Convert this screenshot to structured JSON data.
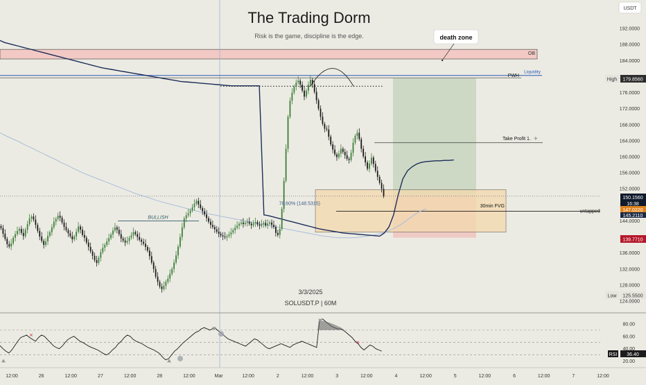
{
  "header": {
    "title": "The Trading Dorm",
    "subtitle": "Risk is the game, discipline is the edge.",
    "date_watermark": "3/3/2025",
    "symbol_watermark": "SOLUSDT.P | 60M"
  },
  "colors": {
    "background": "#ecebe3",
    "candle_up": "#3d7f3a",
    "candle_down": "#1c1c1c",
    "ema_line": "#1b2d5a",
    "vwap_line": "#a8bddb",
    "ob_zone": "#f2c9c4",
    "fvg_zone": "#f4d9ae",
    "tp_zone": "#c9d6c0",
    "sl_zone": "#f0c7c0",
    "liquidity_line": "#2a5ab8",
    "low_badge": "#b5172a",
    "price_badge": "#0f1a2b",
    "vwap_badge": "#e0841e"
  },
  "price_scale": {
    "currency": "USDT",
    "ticks": [
      "192.0000",
      "188.0000",
      "184.0000",
      "180.0000",
      "176.0000",
      "172.0000",
      "168.0000",
      "164.0000",
      "160.0000",
      "156.0000",
      "152.0000",
      "148.0000",
      "144.0000",
      "140.0000",
      "136.0000",
      "132.0000",
      "128.0000",
      "124.0000"
    ],
    "high_label": "High",
    "high_value": "179.8560",
    "current_price": "150.1560",
    "countdown": "16:38",
    "vwap_value": "147.0220",
    "hidden_value": "145.2110",
    "stop_value": "139.7710",
    "low_label": "Low",
    "low_value": "125.5500"
  },
  "annotations": {
    "death_zone": "death zone",
    "ob": "OB",
    "liquidity": "Liquidity",
    "pwh": "PWH",
    "take_profit": "Take Profit 1.",
    "bullish": "BULLISH",
    "fib": "78.60% (148.5315)",
    "fvg": "30min FVG",
    "vwap_label": "untapped VWAP"
  },
  "rsi": {
    "label": "RSI",
    "value": "36.40",
    "ticks": [
      "80.00",
      "60.00",
      "40.00",
      "20.00"
    ]
  },
  "time_axis": [
    "12:00",
    "26",
    "12:00",
    "27",
    "12:00",
    "28",
    "12:00",
    "Mar",
    "12:00",
    "2",
    "12:00",
    "3",
    "12:00",
    "4",
    "12:00",
    "5",
    "12:00",
    "6",
    "12:00",
    "7",
    "12:00"
  ],
  "chart_data": {
    "type": "candlestick",
    "symbol": "SOLUSDT.P",
    "timeframe": "60M",
    "ylim": [
      124,
      196
    ],
    "x_range_hours": [
      0,
      162
    ],
    "first_candle_hour": 0,
    "candle_interval_hours": 1,
    "candles_close": [
      142.2,
      140.8,
      139.5,
      138.2,
      137.6,
      138.4,
      139.8,
      140.7,
      141.5,
      142.0,
      141.0,
      140.2,
      141.8,
      143.2,
      144.6,
      145.1,
      144.3,
      143.0,
      141.5,
      140.1,
      139.0,
      138.0,
      138.9,
      140.3,
      141.2,
      142.4,
      143.8,
      144.5,
      145.3,
      144.8,
      143.6,
      142.5,
      141.7,
      140.9,
      140.2,
      139.4,
      140.1,
      141.3,
      142.6,
      141.8,
      140.5,
      139.8,
      138.6,
      137.5,
      136.4,
      135.3,
      134.2,
      133.5,
      134.8,
      136.2,
      137.3,
      138.0,
      138.9,
      139.7,
      140.6,
      141.6,
      142.4,
      141.8,
      140.7,
      139.6,
      139.1,
      138.6,
      139.0,
      139.8,
      140.4,
      141.2,
      140.7,
      140.0,
      139.3,
      138.8,
      138.3,
      137.5,
      136.6,
      135.2,
      133.6,
      132.0,
      130.1,
      128.8,
      127.6,
      127.0,
      127.8,
      128.8,
      129.6,
      130.8,
      132.0,
      133.6,
      135.4,
      137.6,
      140.0,
      142.4,
      144.6,
      145.4,
      145.9,
      146.6,
      147.4,
      148.3,
      149.0,
      148.1,
      147.2,
      146.4,
      145.6,
      144.7,
      143.8,
      143.0,
      142.5,
      141.9,
      141.3,
      140.8,
      140.4,
      140.1,
      139.9,
      140.2,
      140.6,
      141.1,
      141.7,
      142.3,
      142.8,
      143.3,
      143.6,
      143.2,
      143.5,
      143.8,
      143.3,
      142.9,
      143.4,
      143.7,
      143.1,
      142.8,
      143.2,
      143.5,
      142.9,
      143.3,
      143.6,
      143.0,
      142.5,
      141.0,
      140.5,
      142.0,
      147.0,
      154.0,
      162.0,
      170.0,
      174.0,
      176.0,
      177.5,
      178.5,
      179.0,
      178.0,
      176.5,
      175.0,
      176.5,
      178.0,
      179.2,
      178.1,
      176.2,
      174.1,
      172.0,
      170.0,
      168.2,
      167.0,
      166.8,
      165.0,
      163.1,
      161.8,
      160.6,
      159.9,
      160.8,
      162.0,
      161.2,
      160.4,
      159.5,
      159.2,
      161.0,
      163.5,
      165.2,
      166.0,
      164.4,
      162.0,
      160.1,
      158.6,
      157.0,
      158.3,
      159.8,
      158.2,
      156.5,
      155.0,
      153.5,
      152.0,
      150.2
    ],
    "series": [
      {
        "name": "EMA",
        "values": [
          189.0,
          188.5,
          188.2,
          187.9,
          187.6,
          187.3,
          187.0,
          186.7,
          186.4,
          186.1,
          185.8,
          185.5,
          185.2,
          184.9,
          184.6,
          184.3,
          184.0,
          183.7,
          183.4,
          183.1,
          182.8,
          182.5,
          182.2,
          182.0,
          181.8,
          181.6,
          181.4,
          181.2,
          181.0,
          180.8,
          180.6,
          180.4,
          180.2,
          180.0,
          179.8,
          179.6,
          179.4,
          179.2,
          179.0,
          178.8,
          178.7,
          178.6,
          178.5,
          178.4,
          178.3,
          178.2,
          178.1,
          178.0,
          177.9,
          177.8,
          177.7,
          177.7,
          177.7,
          177.7,
          177.7,
          177.7,
          177.7,
          145.5,
          145.3,
          145.0,
          144.7,
          144.4,
          144.1,
          143.8,
          143.5,
          143.2,
          142.9,
          142.6,
          142.3,
          142.0,
          141.8,
          141.6,
          141.4,
          141.2,
          141.0,
          140.9,
          140.8,
          140.7,
          140.6,
          140.5,
          140.4,
          140.3,
          140.2,
          141.0,
          142.5,
          145.5,
          150.5,
          154.5,
          156.5,
          157.5,
          158.2,
          158.6,
          158.8,
          158.9,
          159.0,
          159.0,
          159.1,
          159.1,
          159.2
        ]
      },
      {
        "name": "VWAP",
        "values": [
          166.0,
          165.2,
          164.5,
          163.8,
          163.0,
          162.3,
          161.5,
          160.8,
          160.0,
          159.3,
          158.5,
          157.8,
          157.0,
          156.3,
          155.6,
          155.0,
          154.4,
          153.8,
          153.2,
          152.6,
          152.0,
          151.4,
          150.8,
          150.3,
          149.8,
          149.3,
          148.8,
          148.4,
          148.0,
          147.6,
          147.2,
          146.8,
          146.4,
          146.0,
          145.7,
          145.4,
          145.1,
          144.8,
          144.5,
          144.2,
          143.9,
          143.6,
          143.3,
          143.0,
          142.7,
          142.4,
          142.1,
          141.8,
          141.5,
          141.2,
          140.9,
          140.6,
          140.3,
          140.1,
          139.9,
          139.8,
          139.8,
          139.8,
          139.9,
          140.1,
          140.3,
          140.6,
          141.0,
          141.6,
          142.3,
          143.2,
          144.3,
          145.4,
          146.4,
          147.0
        ]
      }
    ],
    "zones": [
      {
        "name": "OB",
        "y": [
          184.4,
          186.8
        ]
      },
      {
        "name": "30min FVG",
        "y": [
          141.2,
          151.8
        ]
      },
      {
        "name": "Take Profit 1.",
        "y": [
          163.5,
          163.5
        ]
      }
    ],
    "rsi_values": [
      45,
      40,
      36,
      33,
      38,
      45,
      52,
      58,
      60,
      62,
      58,
      55,
      52,
      58,
      62,
      60,
      55,
      50,
      45,
      42,
      40,
      44,
      50,
      55,
      58,
      60,
      56,
      52,
      50,
      47,
      44,
      42,
      40,
      38,
      35,
      32,
      30,
      33,
      38,
      42,
      48,
      52,
      58,
      62,
      60,
      55,
      52,
      50,
      48,
      45,
      42,
      40,
      38,
      35,
      32,
      26,
      22,
      24,
      30,
      36,
      40,
      45,
      50,
      54,
      58,
      62,
      66,
      68,
      72,
      74,
      72,
      70,
      73,
      72,
      68,
      64,
      60,
      56,
      54,
      52,
      50,
      48,
      46,
      44,
      48,
      52,
      56,
      54,
      50,
      46,
      42,
      40,
      42,
      44,
      46,
      48,
      46,
      44,
      42,
      46,
      48,
      50,
      52,
      50,
      48,
      46,
      44,
      42,
      86,
      88,
      84,
      80,
      76,
      74,
      72,
      72,
      70,
      66,
      62,
      58,
      52,
      48,
      42,
      38,
      42,
      46,
      44,
      40,
      38,
      36
    ]
  }
}
